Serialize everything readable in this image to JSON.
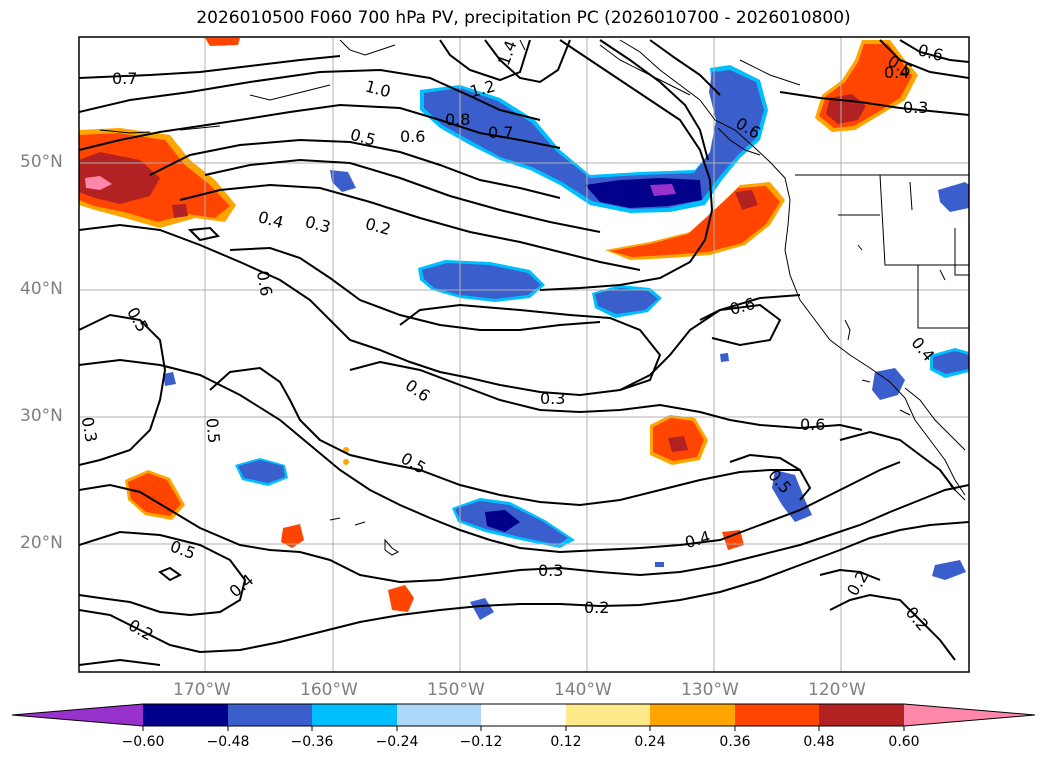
{
  "title": "2026010500 F060 700 hPa PV, precipitation PC (2026010700 - 2026010800)",
  "lat_labels": [
    "50°N",
    "40°N",
    "30°N",
    "20°N"
  ],
  "lon_labels": [
    "170°W",
    "160°W",
    "150°W",
    "140°W",
    "130°W",
    "120°W"
  ],
  "contour_labels": [
    {
      "text": "0.7"
    },
    {
      "text": "1.0"
    },
    {
      "text": "1.2"
    },
    {
      "text": "1.4"
    },
    {
      "text": "0.8"
    },
    {
      "text": "0.7"
    },
    {
      "text": "0.5"
    },
    {
      "text": "0.6"
    },
    {
      "text": "0.4"
    },
    {
      "text": "0.3"
    },
    {
      "text": "0.2"
    },
    {
      "text": "0.6"
    },
    {
      "text": "0.5"
    },
    {
      "text": "0.3"
    },
    {
      "text": "0.6"
    },
    {
      "text": "0.3"
    },
    {
      "text": "0.5"
    },
    {
      "text": "0.6"
    },
    {
      "text": "0.6"
    },
    {
      "text": "0.5"
    },
    {
      "text": "0.4"
    },
    {
      "text": "0.3"
    },
    {
      "text": "0.2"
    },
    {
      "text": "0.5"
    },
    {
      "text": "0.4"
    },
    {
      "text": "0.2"
    },
    {
      "text": "0.6"
    },
    {
      "text": "0.5"
    },
    {
      "text": "0.4"
    },
    {
      "text": "0.3"
    },
    {
      "text": "0.2"
    },
    {
      "text": "0.2"
    },
    {
      "text": "0.4"
    },
    {
      "text": "0.5"
    },
    {
      "text": "0.6"
    }
  ],
  "colorbar": {
    "colors": [
      "#9932cc",
      "#00008b",
      "#3a5fcd",
      "#00bfff",
      "#add8f7",
      "#ffffff",
      "#ffe98a",
      "#ffa500",
      "#ff4500",
      "#b22222",
      "#ff88aa"
    ],
    "tick_labels": [
      "−0.60",
      "−0.48",
      "−0.36",
      "−0.24",
      "−0.12",
      "0.12",
      "0.24",
      "0.36",
      "0.48",
      "0.60"
    ]
  }
}
